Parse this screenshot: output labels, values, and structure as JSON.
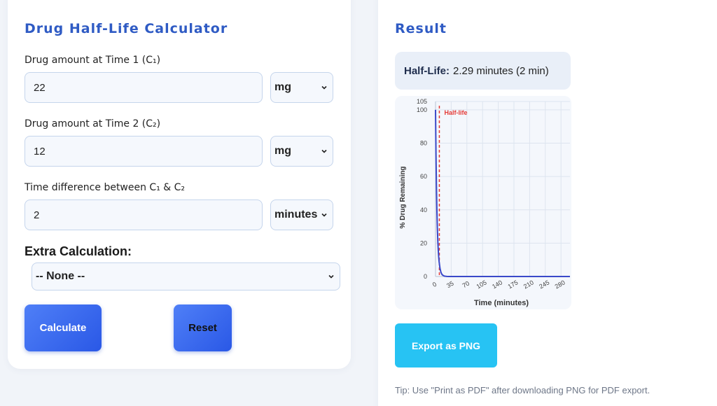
{
  "calculator": {
    "title": "Drug Half-Life Calculator",
    "c1_label": "Drug amount at Time 1 (C₁)",
    "c1_value": "22",
    "c1_unit": "mg",
    "c2_label": "Drug amount at Time 2 (C₂)",
    "c2_value": "12",
    "c2_unit": "mg",
    "time_label": "Time difference between C₁ & C₂",
    "time_value": "2",
    "time_unit": "minutes",
    "extra_label": "Extra Calculation:",
    "extra_value": "-- None --",
    "calculate_label": "Calculate",
    "reset_label": "Reset"
  },
  "result": {
    "title": "Result",
    "halflife_label": "Half-Life:",
    "halflife_value": "2.29 minutes (2 min)",
    "export_label": "Export as PNG",
    "tip": "Tip: Use \"Print as PDF\" after downloading PNG for PDF export."
  },
  "colors": {
    "accent": "#2f5bc4",
    "button_gradient_start": "#4f7ff7",
    "button_gradient_end": "#2a58e6",
    "export_button": "#27c3f3",
    "curve": "#3a49c9",
    "halflife_line": "#e53935"
  },
  "icons": {
    "select_chevron": "chevron-down-icon"
  },
  "chart_data": {
    "type": "line",
    "title": "",
    "xlabel": "Time (minutes)",
    "ylabel": "% Drug Remaining",
    "xlim": [
      0,
      300
    ],
    "ylim": [
      0,
      105
    ],
    "x_ticks": [
      0,
      35,
      70,
      105,
      140,
      175,
      210,
      245,
      280
    ],
    "y_ticks": [
      0,
      20,
      40,
      60,
      80,
      100,
      105
    ],
    "grid": true,
    "series": [
      {
        "x": [
          0,
          1,
          2,
          3,
          4,
          5,
          6,
          7,
          8,
          10,
          12,
          14,
          16,
          20,
          25,
          30,
          35,
          50,
          100,
          200,
          300
        ],
        "values": [
          100,
          73.9,
          54.6,
          40.4,
          29.8,
          22.0,
          16.3,
          12.0,
          8.9,
          4.9,
          2.6,
          1.4,
          0.8,
          0.2,
          0.05,
          0.01,
          0,
          0,
          0,
          0,
          0
        ]
      }
    ],
    "annotations": [
      {
        "type": "vline",
        "x": 2.29,
        "label": "Half-life"
      }
    ]
  }
}
